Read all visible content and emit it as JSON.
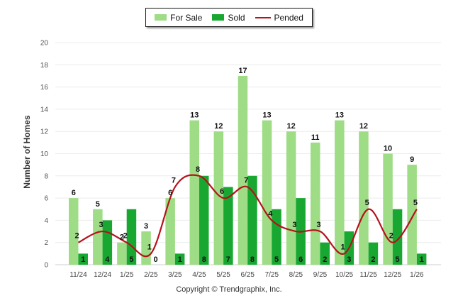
{
  "chart_data": {
    "type": "bar",
    "title": "",
    "xlabel": "",
    "ylabel": "Number of Homes",
    "ylim": [
      0,
      20
    ],
    "yticks": [
      "0",
      "2",
      "4",
      "6",
      "8",
      "10",
      "12",
      "14",
      "16",
      "18",
      "20"
    ],
    "categories": [
      "11/24",
      "12/24",
      "1/25",
      "2/25",
      "3/25",
      "4/25",
      "5/25",
      "6/25",
      "7/25",
      "8/25",
      "9/25",
      "10/25",
      "11/25",
      "12/25",
      "1/26"
    ],
    "series": [
      {
        "name": "For Sale",
        "type": "bar",
        "color": "#9edc86",
        "values": [
          6,
          5,
          2,
          3,
          6,
          13,
          12,
          17,
          13,
          12,
          11,
          13,
          12,
          10,
          9
        ]
      },
      {
        "name": "Sold",
        "type": "bar",
        "color": "#18a832",
        "values": [
          1,
          4,
          5,
          0,
          1,
          8,
          7,
          8,
          5,
          6,
          2,
          3,
          2,
          5,
          1
        ]
      },
      {
        "name": "Pended",
        "type": "line",
        "color": "#b5121b",
        "values": [
          2,
          3,
          2,
          1,
          7,
          8,
          6,
          7,
          4,
          3,
          3,
          1,
          5,
          2,
          5
        ]
      }
    ],
    "legend": "top-center"
  },
  "footer": {
    "copyright": "Copyright © Trendgraphix, Inc."
  }
}
